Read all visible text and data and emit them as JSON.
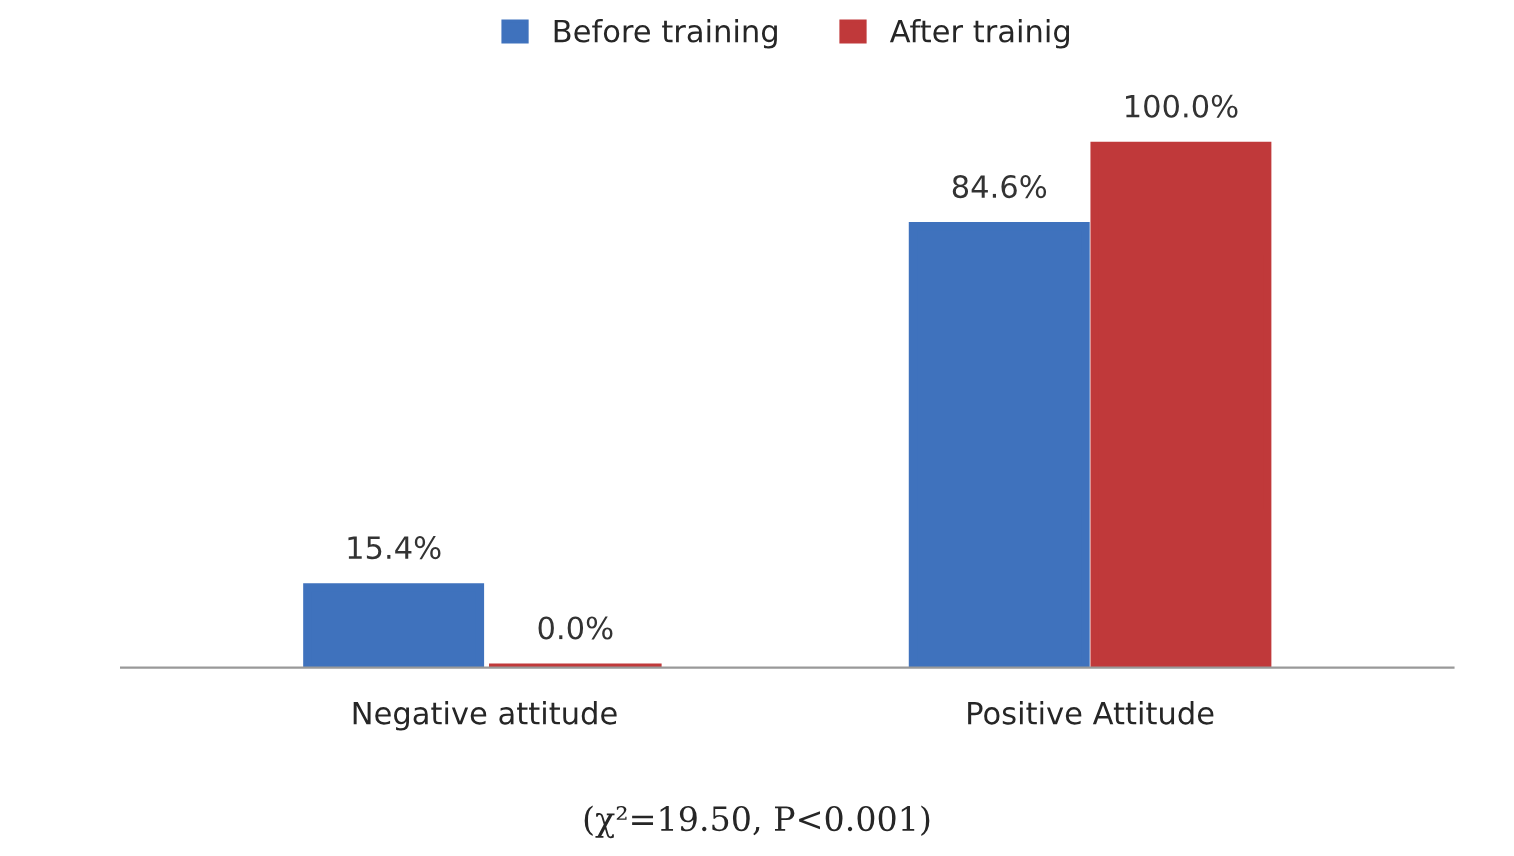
{
  "chart_data": {
    "type": "bar",
    "categories": [
      "Negative attitude",
      "Positive Attitude"
    ],
    "series": [
      {
        "name": "Before training",
        "color": "#3f72bd",
        "values": [
          15.4,
          84.6
        ],
        "value_labels": [
          "15.4%",
          "84.6%"
        ]
      },
      {
        "name": "After trainig",
        "color": "#c0393a",
        "values": [
          0.0,
          100.0
        ],
        "value_labels": [
          "0.0%",
          "100.0%"
        ]
      }
    ],
    "legend": "top",
    "grid": false,
    "annotations": [
      "(χ²=19.50, P<0.001)"
    ]
  }
}
